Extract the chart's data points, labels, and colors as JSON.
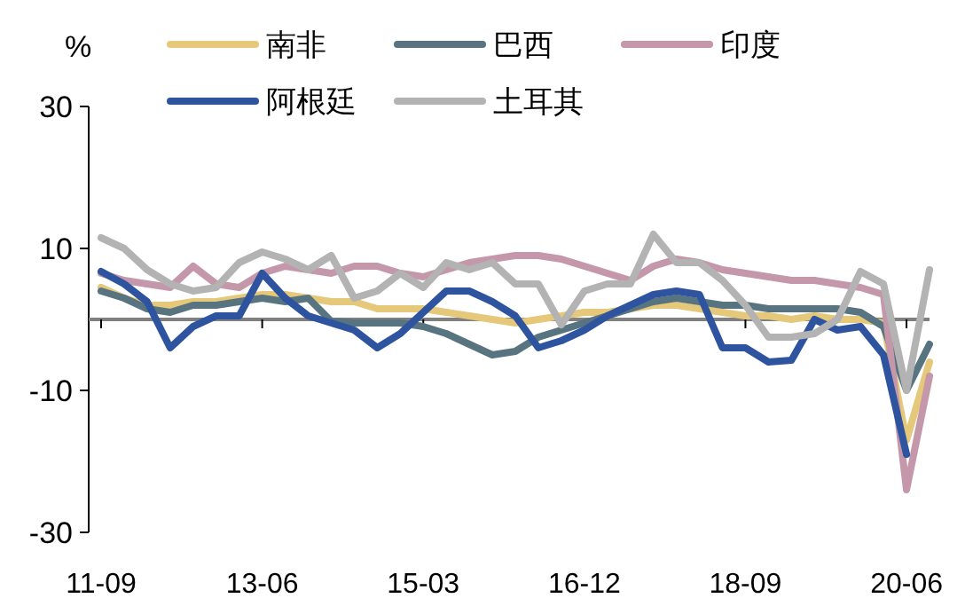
{
  "chart_data": {
    "type": "line",
    "ylabel": "%",
    "categories": [
      "11-09",
      null,
      null,
      null,
      null,
      null,
      null,
      "13-06",
      null,
      null,
      null,
      null,
      null,
      null,
      "15-03",
      null,
      null,
      null,
      null,
      null,
      null,
      "16-12",
      null,
      null,
      null,
      null,
      null,
      null,
      "18-09",
      null,
      null,
      null,
      null,
      null,
      null,
      "20-06",
      null
    ],
    "ylim": [
      -30,
      30
    ],
    "yticks": [
      30,
      10,
      -10,
      -30
    ],
    "legend": "top",
    "grid": false,
    "marker": "none",
    "line_style": "solid",
    "series": [
      {
        "name": "南非",
        "color": "#e6c87a",
        "values": [
          4.5,
          3,
          2,
          2,
          2.5,
          2.5,
          3,
          3.5,
          3.5,
          3,
          2.5,
          2.5,
          1.5,
          1.5,
          1.5,
          1,
          0.5,
          0,
          -0.5,
          0,
          0.5,
          1,
          1,
          1.5,
          2,
          2,
          1.5,
          1,
          0.5,
          0.5,
          0,
          0.5,
          0,
          0,
          -0.5,
          -17,
          -6
        ]
      },
      {
        "name": "巴西",
        "color": "#587480",
        "values": [
          4,
          3,
          1.5,
          1,
          2,
          2,
          2.5,
          3,
          2.5,
          3,
          -0.25,
          -0.5,
          -0.5,
          -0.5,
          -1,
          -2,
          -3.5,
          -5,
          -4.5,
          -2.5,
          -1.5,
          -0.5,
          0.5,
          1.5,
          2.5,
          3,
          2.5,
          2,
          2,
          1.5,
          1.5,
          1.5,
          1.5,
          1,
          -1,
          -10,
          -3.5
        ]
      },
      {
        "name": "印度",
        "color": "#c597aa",
        "values": [
          6.5,
          5.5,
          5,
          4.5,
          7.5,
          5,
          4.5,
          6.5,
          7.5,
          7,
          6.5,
          7.5,
          7.5,
          6.5,
          6,
          7,
          8,
          8.5,
          9,
          9,
          8.5,
          7.5,
          6.5,
          5.5,
          7.5,
          8.5,
          8,
          7,
          6.5,
          6,
          5.5,
          5.5,
          5,
          4.5,
          3.5,
          -24,
          -8
        ]
      },
      {
        "name": "阿根廷",
        "color": "#2e54a0",
        "values": [
          6.75,
          5,
          2.5,
          -4,
          -1,
          0.5,
          0.5,
          6.5,
          3,
          0.5,
          -0.5,
          -1.5,
          -4,
          -2,
          1,
          4,
          4,
          2.5,
          0.5,
          -4,
          -3,
          -1.5,
          0.5,
          2,
          3.5,
          4,
          3.5,
          -4,
          -4,
          -6,
          -5.75,
          0,
          -1.5,
          -1,
          -5,
          -19,
          null
        ]
      },
      {
        "name": "土耳其",
        "color": "#b3b3b3",
        "values": [
          11.5,
          10,
          7,
          5,
          4,
          4.5,
          8,
          9.5,
          8.5,
          7,
          9,
          3,
          4,
          6.5,
          4.5,
          8,
          7,
          8,
          5,
          5,
          -0.75,
          4,
          5,
          5,
          12,
          8,
          8,
          5.5,
          2,
          -2.5,
          -2.5,
          -2,
          0,
          6.75,
          5,
          -10,
          7
        ]
      }
    ]
  }
}
